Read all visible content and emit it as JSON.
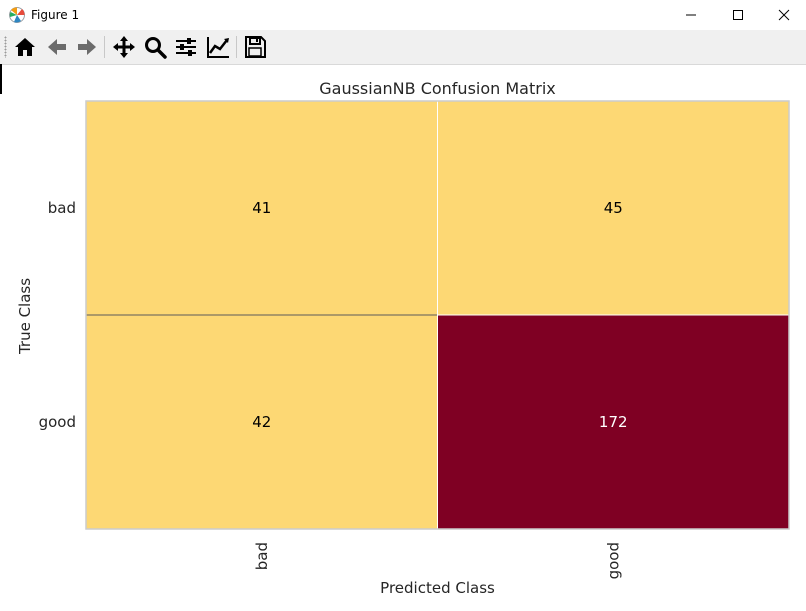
{
  "window": {
    "title": "Figure 1"
  },
  "toolbar": {
    "buttons": [
      {
        "name": "home-icon"
      },
      {
        "name": "back-arrow-icon"
      },
      {
        "name": "forward-arrow-icon"
      },
      {
        "name": "pan-icon"
      },
      {
        "name": "zoom-icon"
      },
      {
        "name": "configure-subplots-icon"
      },
      {
        "name": "edit-axis-icon"
      },
      {
        "name": "save-icon"
      }
    ]
  },
  "colors": {
    "low": "#fdd874",
    "high": "#7f0023",
    "text_on_low": "#000000",
    "text_on_high": "#ffffff"
  },
  "chart_data": {
    "type": "heatmap",
    "title": "GaussianNB Confusion Matrix",
    "xlabel": "Predicted Class",
    "ylabel": "True Class",
    "x_categories": [
      "bad",
      "good"
    ],
    "y_categories": [
      "bad",
      "good"
    ],
    "values": [
      [
        41,
        45
      ],
      [
        42,
        172
      ]
    ]
  }
}
